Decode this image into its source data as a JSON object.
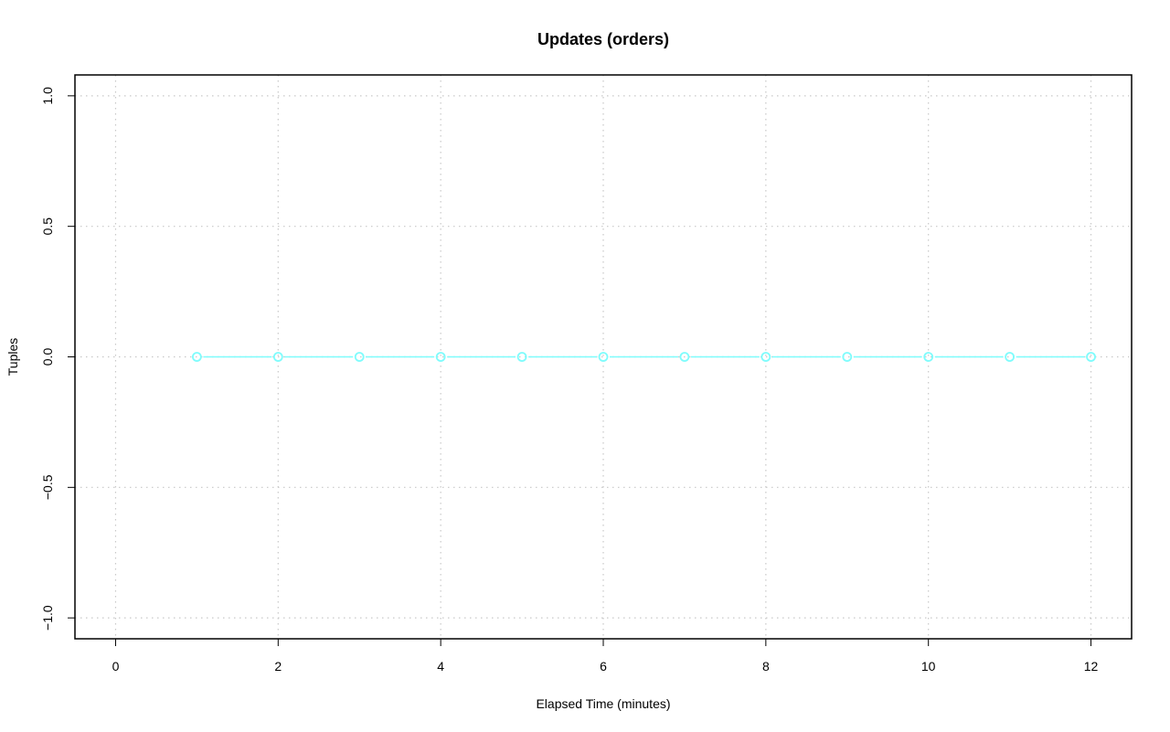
{
  "chart_data": {
    "type": "line",
    "title": "Updates (orders)",
    "xlabel": "Elapsed Time (minutes)",
    "ylabel": "Tuples",
    "xlim": [
      -0.5,
      12.5
    ],
    "ylim": [
      -1.08,
      1.08
    ],
    "xticks": [
      0,
      2,
      4,
      6,
      8,
      10,
      12
    ],
    "yticks": [
      -1.0,
      -0.5,
      0.0,
      0.5,
      1.0
    ],
    "ytick_labels": [
      "−1.0",
      "−0.5",
      "0.0",
      "0.5",
      "1.0"
    ],
    "grid": true,
    "series": [
      {
        "x": [
          1,
          2,
          3,
          4,
          5,
          6,
          7,
          8,
          9,
          10,
          11,
          12
        ],
        "y": [
          0,
          0,
          0,
          0,
          0,
          0,
          0,
          0,
          0,
          0,
          0,
          0
        ],
        "color": "#7ffcfc",
        "marker": "open-circle"
      }
    ]
  }
}
